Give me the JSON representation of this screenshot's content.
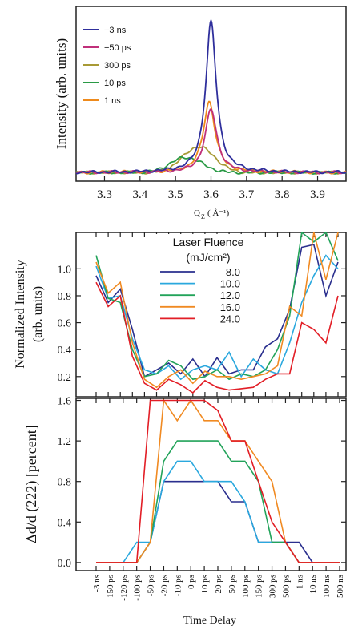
{
  "chart_data": [
    {
      "type": "line",
      "ylabel": "Intensity (arb. units)",
      "xlabel_main": "Q",
      "xlabel_sub": "Z",
      "xlabel_unit": "( Å⁻¹)",
      "xlim": [
        3.22,
        3.98
      ],
      "ylim": [
        0,
        1.1
      ],
      "x_ticks": [
        "3.3",
        "3.4",
        "3.5",
        "3.6",
        "3.7",
        "3.8",
        "3.9"
      ],
      "grid": false,
      "legend_position": "top-left",
      "peaks": [
        {
          "name": "−3 ns",
          "color": "#2f2f9c",
          "center": 3.6,
          "amplitude": 1.0,
          "width": 0.018,
          "shape": "lorentzian"
        },
        {
          "name": "−50 ps",
          "color": "#c0307a",
          "center": 3.6,
          "amplitude": 0.42,
          "width": 0.02,
          "shape": "lorentzian"
        },
        {
          "name": "300 ps",
          "color": "#a89a35",
          "center": 3.565,
          "amplitude": 0.17,
          "width": 0.045,
          "shape": "gaussian"
        },
        {
          "name": "10 ps",
          "color": "#2a9a45",
          "center": 3.53,
          "amplitude": 0.1,
          "width": 0.045,
          "shape": "gaussian"
        },
        {
          "name": "1 ns",
          "color": "#ee8a1c",
          "center": 3.595,
          "amplitude": 0.47,
          "width": 0.02,
          "shape": "lorentzian"
        }
      ]
    },
    {
      "type": "line",
      "ylabel": "Normalized Intensity",
      "ylabel2": "(arb. units)",
      "ylim": [
        0.05,
        1.27
      ],
      "y_ticks": [
        "0.2",
        "0.4",
        "0.6",
        "0.8",
        "1.0"
      ],
      "legend_title": "Laser Fluence",
      "legend_unit": "(mJ/cm²)",
      "legend_position": "top-center",
      "grid": false,
      "series": [
        {
          "name": "8.0",
          "color": "#2a2f8e",
          "values": [
            0.95,
            0.75,
            0.85,
            0.55,
            0.2,
            0.25,
            0.3,
            0.22,
            0.33,
            0.2,
            0.34,
            0.22,
            0.25,
            0.25,
            0.42,
            0.48,
            0.7,
            1.16,
            1.18,
            0.8,
            1.05
          ]
        },
        {
          "name": "10.0",
          "color": "#2aa8de",
          "values": [
            1.02,
            0.78,
            0.8,
            0.48,
            0.25,
            0.22,
            0.28,
            0.18,
            0.25,
            0.28,
            0.25,
            0.38,
            0.2,
            0.33,
            0.25,
            0.22,
            0.45,
            0.75,
            0.95,
            1.1,
            1.0
          ]
        },
        {
          "name": "12.0",
          "color": "#22a35a",
          "values": [
            1.1,
            0.78,
            0.75,
            0.4,
            0.2,
            0.22,
            0.32,
            0.28,
            0.18,
            0.2,
            0.25,
            0.18,
            0.22,
            0.2,
            0.25,
            0.4,
            0.65,
            1.27,
            1.2,
            1.27,
            1.06
          ]
        },
        {
          "name": "16.0",
          "color": "#f08a22",
          "values": [
            1.05,
            0.82,
            0.9,
            0.45,
            0.18,
            0.12,
            0.2,
            0.25,
            0.15,
            0.24,
            0.2,
            0.2,
            0.18,
            0.2,
            0.22,
            0.28,
            0.72,
            0.65,
            1.27,
            0.92,
            1.27
          ]
        },
        {
          "name": "24.0",
          "color": "#e21e26",
          "values": [
            0.9,
            0.72,
            0.8,
            0.35,
            0.15,
            0.1,
            0.18,
            0.14,
            0.08,
            0.17,
            0.12,
            0.1,
            0.11,
            0.12,
            0.18,
            0.22,
            0.22,
            0.6,
            0.55,
            0.45,
            0.8
          ]
        }
      ]
    },
    {
      "type": "line",
      "ylabel": "Δd/d (222) [percent]",
      "xlabel": "Time Delay",
      "ylim": [
        -0.08,
        1.62
      ],
      "y_ticks": [
        "0.0",
        "0.4",
        "0.8",
        "1.2",
        "1.6"
      ],
      "categories": [
        "-3 ns",
        "-150 ps",
        "-120 ps",
        "-100 ps",
        "-50 ps",
        "-20 ps",
        "-10 ps",
        "0 ps",
        "10 ps",
        "20 ps",
        "50 ps",
        "100 ps",
        "150 ps",
        "300 ps",
        "500 ps",
        "1 ns",
        "10 ns",
        "100 ns",
        "500 ns"
      ],
      "grid": false,
      "series": [
        {
          "name": "8.0",
          "color": "#2a2f8e",
          "values": [
            0,
            0,
            0,
            0,
            0.2,
            0.8,
            0.8,
            0.8,
            0.8,
            0.8,
            0.6,
            0.6,
            0.2,
            0.2,
            0.2,
            0.2,
            0,
            0,
            0
          ]
        },
        {
          "name": "10.0",
          "color": "#2aa8de",
          "values": [
            0,
            0,
            0,
            0.2,
            0.2,
            0.8,
            1.0,
            1.0,
            0.8,
            0.8,
            0.8,
            0.6,
            0.2,
            0.2,
            0.2,
            0,
            0,
            0,
            0
          ]
        },
        {
          "name": "12.0",
          "color": "#22a35a",
          "values": [
            0,
            0,
            0,
            0,
            0.2,
            1.0,
            1.2,
            1.2,
            1.2,
            1.2,
            1.0,
            1.0,
            0.8,
            0.2,
            0.2,
            0,
            0,
            0,
            0
          ]
        },
        {
          "name": "16.0",
          "color": "#f08a22",
          "values": [
            0,
            0,
            0,
            0,
            0.2,
            1.6,
            1.4,
            1.6,
            1.4,
            1.4,
            1.2,
            1.2,
            1.0,
            0.8,
            0.2,
            0,
            0,
            0,
            0
          ]
        },
        {
          "name": "24.0",
          "color": "#e21e26",
          "values": [
            0,
            0,
            0,
            0,
            1.6,
            1.6,
            1.6,
            1.6,
            1.6,
            1.5,
            1.2,
            1.2,
            0.8,
            0.4,
            0.2,
            0,
            0,
            0,
            0
          ]
        }
      ]
    }
  ]
}
